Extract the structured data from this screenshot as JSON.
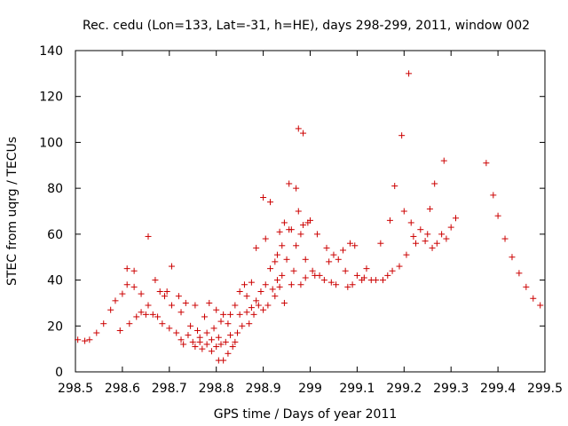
{
  "chart_data": {
    "type": "scatter",
    "title": "Rec. cedu (Lon=133, Lat=-31, h=HE), days 298-299, 2011, window 002",
    "xlabel": "GPS time / Days of year 2011",
    "ylabel": "STEC from uqrg / TECUs",
    "xlim": [
      298.5,
      299.5
    ],
    "ylim": [
      0,
      140
    ],
    "xticks": [
      298.5,
      298.6,
      298.7,
      298.8,
      298.9,
      299.0,
      299.1,
      299.2,
      299.3,
      299.4,
      299.5
    ],
    "xtick_labels": [
      "298.5",
      "298.6",
      "298.7",
      "298.8",
      "298.9",
      "299",
      "299.1",
      "299.2",
      "299.3",
      "299.4",
      "299.5"
    ],
    "yticks": [
      0,
      20,
      40,
      60,
      80,
      100,
      120,
      140
    ],
    "ytick_labels": [
      "0",
      "20",
      "40",
      "60",
      "80",
      "100",
      "120",
      "140"
    ],
    "grid": false,
    "marker": "+",
    "color": "#cc0000",
    "points": [
      [
        298.505,
        14
      ],
      [
        298.52,
        13.5
      ],
      [
        298.53,
        14
      ],
      [
        298.545,
        17
      ],
      [
        298.56,
        21
      ],
      [
        298.575,
        27
      ],
      [
        298.585,
        31
      ],
      [
        298.595,
        18
      ],
      [
        298.6,
        34
      ],
      [
        298.61,
        38
      ],
      [
        298.61,
        45
      ],
      [
        298.615,
        21
      ],
      [
        298.625,
        37
      ],
      [
        298.625,
        44
      ],
      [
        298.63,
        24
      ],
      [
        298.64,
        34
      ],
      [
        298.64,
        26
      ],
      [
        298.65,
        25
      ],
      [
        298.655,
        59
      ],
      [
        298.655,
        29
      ],
      [
        298.665,
        25
      ],
      [
        298.67,
        40
      ],
      [
        298.675,
        24
      ],
      [
        298.68,
        35
      ],
      [
        298.685,
        21
      ],
      [
        298.69,
        33
      ],
      [
        298.695,
        35
      ],
      [
        298.7,
        19
      ],
      [
        298.705,
        29
      ],
      [
        298.705,
        46
      ],
      [
        298.715,
        17
      ],
      [
        298.72,
        33
      ],
      [
        298.725,
        14
      ],
      [
        298.725,
        26
      ],
      [
        298.73,
        12
      ],
      [
        298.735,
        30
      ],
      [
        298.74,
        16
      ],
      [
        298.745,
        20
      ],
      [
        298.75,
        13
      ],
      [
        298.755,
        29
      ],
      [
        298.755,
        11
      ],
      [
        298.76,
        18
      ],
      [
        298.765,
        13
      ],
      [
        298.765,
        15
      ],
      [
        298.77,
        10
      ],
      [
        298.775,
        24
      ],
      [
        298.78,
        12
      ],
      [
        298.78,
        17
      ],
      [
        298.785,
        30
      ],
      [
        298.79,
        14
      ],
      [
        298.79,
        9
      ],
      [
        298.795,
        19
      ],
      [
        298.8,
        11
      ],
      [
        298.8,
        27
      ],
      [
        298.805,
        5
      ],
      [
        298.805,
        15
      ],
      [
        298.81,
        22
      ],
      [
        298.81,
        12
      ],
      [
        298.815,
        5
      ],
      [
        298.815,
        25
      ],
      [
        298.82,
        13
      ],
      [
        298.825,
        8
      ],
      [
        298.825,
        21
      ],
      [
        298.83,
        25
      ],
      [
        298.83,
        16
      ],
      [
        298.835,
        11
      ],
      [
        298.84,
        13
      ],
      [
        298.84,
        29
      ],
      [
        298.845,
        17
      ],
      [
        298.85,
        25
      ],
      [
        298.85,
        35
      ],
      [
        298.855,
        20
      ],
      [
        298.86,
        38
      ],
      [
        298.865,
        26
      ],
      [
        298.865,
        33
      ],
      [
        298.87,
        21
      ],
      [
        298.875,
        28
      ],
      [
        298.875,
        39
      ],
      [
        298.88,
        25
      ],
      [
        298.885,
        31
      ],
      [
        298.885,
        54
      ],
      [
        298.89,
        29
      ],
      [
        298.895,
        35
      ],
      [
        298.9,
        27
      ],
      [
        298.9,
        76
      ],
      [
        298.905,
        38
      ],
      [
        298.905,
        58
      ],
      [
        298.91,
        29
      ],
      [
        298.915,
        45
      ],
      [
        298.915,
        74
      ],
      [
        298.92,
        36
      ],
      [
        298.925,
        33
      ],
      [
        298.925,
        48
      ],
      [
        298.93,
        40
      ],
      [
        298.93,
        51
      ],
      [
        298.935,
        61
      ],
      [
        298.935,
        37
      ],
      [
        298.94,
        55
      ],
      [
        298.94,
        42
      ],
      [
        298.945,
        65
      ],
      [
        298.945,
        30
      ],
      [
        298.95,
        49
      ],
      [
        298.955,
        62
      ],
      [
        298.955,
        82
      ],
      [
        298.96,
        38
      ],
      [
        298.96,
        62
      ],
      [
        298.965,
        44
      ],
      [
        298.97,
        55
      ],
      [
        298.97,
        80
      ],
      [
        298.975,
        70
      ],
      [
        298.975,
        106
      ],
      [
        298.98,
        38
      ],
      [
        298.98,
        60
      ],
      [
        298.985,
        64
      ],
      [
        298.985,
        104
      ],
      [
        298.99,
        49
      ],
      [
        298.99,
        41
      ],
      [
        298.995,
        65
      ],
      [
        299.0,
        66
      ],
      [
        299.005,
        44
      ],
      [
        299.01,
        42
      ],
      [
        299.015,
        60
      ],
      [
        299.02,
        42
      ],
      [
        299.03,
        40
      ],
      [
        299.035,
        54
      ],
      [
        299.04,
        48
      ],
      [
        299.045,
        39
      ],
      [
        299.05,
        51
      ],
      [
        299.055,
        38
      ],
      [
        299.06,
        49
      ],
      [
        299.07,
        53
      ],
      [
        299.075,
        44
      ],
      [
        299.08,
        37
      ],
      [
        299.085,
        56
      ],
      [
        299.09,
        38
      ],
      [
        299.095,
        55
      ],
      [
        299.1,
        42
      ],
      [
        299.11,
        40
      ],
      [
        299.115,
        41
      ],
      [
        299.12,
        45
      ],
      [
        299.13,
        40
      ],
      [
        299.14,
        40
      ],
      [
        299.15,
        56
      ],
      [
        299.155,
        40
      ],
      [
        299.165,
        42
      ],
      [
        299.17,
        66
      ],
      [
        299.175,
        44
      ],
      [
        299.18,
        81
      ],
      [
        299.19,
        46
      ],
      [
        299.195,
        103
      ],
      [
        299.2,
        70
      ],
      [
        299.205,
        51
      ],
      [
        299.21,
        130
      ],
      [
        299.215,
        65
      ],
      [
        299.22,
        59
      ],
      [
        299.225,
        56
      ],
      [
        299.235,
        62
      ],
      [
        299.245,
        57
      ],
      [
        299.25,
        60
      ],
      [
        299.255,
        71
      ],
      [
        299.26,
        54
      ],
      [
        299.265,
        82
      ],
      [
        299.27,
        56
      ],
      [
        299.28,
        60
      ],
      [
        299.285,
        92
      ],
      [
        299.29,
        58
      ],
      [
        299.3,
        63
      ],
      [
        299.31,
        67
      ],
      [
        299.375,
        91
      ],
      [
        299.39,
        77
      ],
      [
        299.4,
        68
      ],
      [
        299.415,
        58
      ],
      [
        299.43,
        50
      ],
      [
        299.445,
        43
      ],
      [
        299.46,
        37
      ],
      [
        299.475,
        32
      ],
      [
        299.49,
        29
      ]
    ]
  }
}
